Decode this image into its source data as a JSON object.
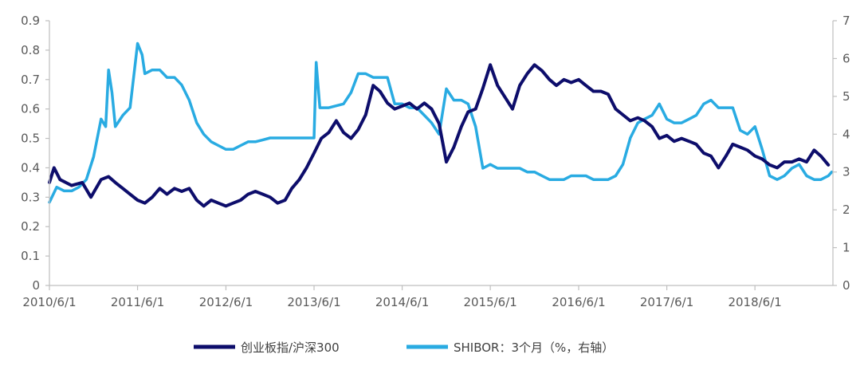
{
  "chart_data": {
    "type": "line",
    "x_ticks": [
      "2010/6/1",
      "2011/6/1",
      "2012/6/1",
      "2013/6/1",
      "2014/6/1",
      "2015/6/1",
      "2016/6/1",
      "2017/6/1",
      "2018/6/1"
    ],
    "y_left": {
      "min": 0,
      "max": 0.9,
      "step": 0.1,
      "ticks": [
        "0",
        "0.1",
        "0.2",
        "0.3",
        "0.4",
        "0.5",
        "0.6",
        "0.7",
        "0.8",
        "0.9"
      ]
    },
    "y_right": {
      "min": 0,
      "max": 7,
      "step": 1,
      "ticks": [
        "0",
        "1",
        "2",
        "3",
        "4",
        "5",
        "6",
        "7"
      ]
    },
    "grid": false,
    "legend_position": "bottom",
    "series": [
      {
        "name": "创业板指/沪深300",
        "axis": "left",
        "color": "#0d0d6b",
        "points": [
          [
            "2010/6/1",
            0.35
          ],
          [
            "2010/6/20",
            0.4
          ],
          [
            "2010/7/15",
            0.36
          ],
          [
            "2010/9/1",
            0.34
          ],
          [
            "2010/10/15",
            0.35
          ],
          [
            "2010/11/20",
            0.3
          ],
          [
            "2011/1/1",
            0.36
          ],
          [
            "2011/2/1",
            0.37
          ],
          [
            "2011/3/1",
            0.35
          ],
          [
            "2011/4/1",
            0.33
          ],
          [
            "2011/5/1",
            0.31
          ],
          [
            "2011/6/1",
            0.29
          ],
          [
            "2011/7/1",
            0.28
          ],
          [
            "2011/8/1",
            0.3
          ],
          [
            "2011/9/1",
            0.33
          ],
          [
            "2011/10/1",
            0.31
          ],
          [
            "2011/11/1",
            0.33
          ],
          [
            "2011/12/1",
            0.32
          ],
          [
            "2012/1/1",
            0.33
          ],
          [
            "2012/2/1",
            0.29
          ],
          [
            "2012/3/1",
            0.27
          ],
          [
            "2012/4/1",
            0.29
          ],
          [
            "2012/5/1",
            0.28
          ],
          [
            "2012/6/1",
            0.27
          ],
          [
            "2012/7/1",
            0.28
          ],
          [
            "2012/8/1",
            0.29
          ],
          [
            "2012/9/1",
            0.31
          ],
          [
            "2012/10/1",
            0.32
          ],
          [
            "2012/11/1",
            0.31
          ],
          [
            "2012/12/1",
            0.3
          ],
          [
            "2013/1/1",
            0.28
          ],
          [
            "2013/2/1",
            0.29
          ],
          [
            "2013/3/1",
            0.33
          ],
          [
            "2013/4/1",
            0.36
          ],
          [
            "2013/5/1",
            0.4
          ],
          [
            "2013/6/1",
            0.45
          ],
          [
            "2013/7/1",
            0.5
          ],
          [
            "2013/8/1",
            0.52
          ],
          [
            "2013/9/1",
            0.56
          ],
          [
            "2013/10/1",
            0.52
          ],
          [
            "2013/11/1",
            0.5
          ],
          [
            "2013/12/1",
            0.53
          ],
          [
            "2014/1/1",
            0.58
          ],
          [
            "2014/2/1",
            0.68
          ],
          [
            "2014/3/1",
            0.66
          ],
          [
            "2014/4/1",
            0.62
          ],
          [
            "2014/5/1",
            0.6
          ],
          [
            "2014/6/1",
            0.61
          ],
          [
            "2014/7/1",
            0.62
          ],
          [
            "2014/8/1",
            0.6
          ],
          [
            "2014/9/1",
            0.62
          ],
          [
            "2014/10/1",
            0.6
          ],
          [
            "2014/11/1",
            0.55
          ],
          [
            "2014/12/1",
            0.42
          ],
          [
            "2015/1/1",
            0.47
          ],
          [
            "2015/2/1",
            0.54
          ],
          [
            "2015/3/1",
            0.59
          ],
          [
            "2015/4/1",
            0.6
          ],
          [
            "2015/5/1",
            0.67
          ],
          [
            "2015/6/1",
            0.75
          ],
          [
            "2015/7/1",
            0.68
          ],
          [
            "2015/8/1",
            0.64
          ],
          [
            "2015/9/1",
            0.6
          ],
          [
            "2015/10/1",
            0.68
          ],
          [
            "2015/11/1",
            0.72
          ],
          [
            "2015/12/1",
            0.75
          ],
          [
            "2016/1/1",
            0.73
          ],
          [
            "2016/2/1",
            0.7
          ],
          [
            "2016/3/1",
            0.68
          ],
          [
            "2016/4/1",
            0.7
          ],
          [
            "2016/5/1",
            0.69
          ],
          [
            "2016/6/1",
            0.7
          ],
          [
            "2016/7/1",
            0.68
          ],
          [
            "2016/8/1",
            0.66
          ],
          [
            "2016/9/1",
            0.66
          ],
          [
            "2016/10/1",
            0.65
          ],
          [
            "2016/11/1",
            0.6
          ],
          [
            "2016/12/1",
            0.58
          ],
          [
            "2017/1/1",
            0.56
          ],
          [
            "2017/2/1",
            0.57
          ],
          [
            "2017/3/1",
            0.56
          ],
          [
            "2017/4/1",
            0.54
          ],
          [
            "2017/5/1",
            0.5
          ],
          [
            "2017/6/1",
            0.51
          ],
          [
            "2017/7/1",
            0.49
          ],
          [
            "2017/8/1",
            0.5
          ],
          [
            "2017/9/1",
            0.49
          ],
          [
            "2017/10/1",
            0.48
          ],
          [
            "2017/11/1",
            0.45
          ],
          [
            "2017/12/1",
            0.44
          ],
          [
            "2018/1/1",
            0.4
          ],
          [
            "2018/2/1",
            0.44
          ],
          [
            "2018/3/1",
            0.48
          ],
          [
            "2018/4/1",
            0.47
          ],
          [
            "2018/5/1",
            0.46
          ],
          [
            "2018/6/1",
            0.44
          ],
          [
            "2018/7/1",
            0.43
          ],
          [
            "2018/8/1",
            0.41
          ],
          [
            "2018/9/1",
            0.4
          ],
          [
            "2018/10/1",
            0.42
          ],
          [
            "2018/11/1",
            0.42
          ],
          [
            "2018/12/1",
            0.43
          ],
          [
            "2019/1/1",
            0.42
          ],
          [
            "2019/2/1",
            0.46
          ],
          [
            "2019/3/1",
            0.44
          ],
          [
            "2019/4/1",
            0.41
          ]
        ]
      },
      {
        "name": "SHIBOR：3个月（%，右轴）",
        "axis": "right",
        "color": "#29abe2",
        "points": [
          [
            "2010/6/1",
            2.2
          ],
          [
            "2010/7/1",
            2.6
          ],
          [
            "2010/8/1",
            2.5
          ],
          [
            "2010/9/1",
            2.5
          ],
          [
            "2010/10/1",
            2.6
          ],
          [
            "2010/11/1",
            2.8
          ],
          [
            "2010/12/1",
            3.4
          ],
          [
            "2011/1/1",
            4.4
          ],
          [
            "2011/1/20",
            4.2
          ],
          [
            "2011/2/1",
            5.7
          ],
          [
            "2011/2/15",
            5.1
          ],
          [
            "2011/3/1",
            4.2
          ],
          [
            "2011/4/1",
            4.5
          ],
          [
            "2011/5/1",
            4.7
          ],
          [
            "2011/6/1",
            6.4
          ],
          [
            "2011/6/20",
            6.1
          ],
          [
            "2011/7/1",
            5.6
          ],
          [
            "2011/8/1",
            5.7
          ],
          [
            "2011/9/1",
            5.7
          ],
          [
            "2011/10/1",
            5.5
          ],
          [
            "2011/11/1",
            5.5
          ],
          [
            "2011/12/1",
            5.3
          ],
          [
            "2012/1/1",
            4.9
          ],
          [
            "2012/2/1",
            4.3
          ],
          [
            "2012/3/1",
            4.0
          ],
          [
            "2012/4/1",
            3.8
          ],
          [
            "2012/5/1",
            3.7
          ],
          [
            "2012/6/1",
            3.6
          ],
          [
            "2012/7/1",
            3.6
          ],
          [
            "2012/8/1",
            3.7
          ],
          [
            "2012/9/1",
            3.8
          ],
          [
            "2012/10/1",
            3.8
          ],
          [
            "2012/11/1",
            3.85
          ],
          [
            "2012/12/1",
            3.9
          ],
          [
            "2013/1/1",
            3.9
          ],
          [
            "2013/5/1",
            3.9
          ],
          [
            "2013/6/1",
            3.9
          ],
          [
            "2013/6/10",
            5.9
          ],
          [
            "2013/6/25",
            4.7
          ],
          [
            "2013/8/1",
            4.7
          ],
          [
            "2013/10/1",
            4.8
          ],
          [
            "2013/11/1",
            5.1
          ],
          [
            "2013/12/1",
            5.6
          ],
          [
            "2014/1/1",
            5.6
          ],
          [
            "2014/2/1",
            5.5
          ],
          [
            "2014/3/1",
            5.5
          ],
          [
            "2014/4/1",
            5.5
          ],
          [
            "2014/5/1",
            4.8
          ],
          [
            "2014/6/1",
            4.8
          ],
          [
            "2014/7/1",
            4.7
          ],
          [
            "2014/8/1",
            4.7
          ],
          [
            "2014/9/1",
            4.5
          ],
          [
            "2014/10/1",
            4.3
          ],
          [
            "2014/11/1",
            4.0
          ],
          [
            "2014/12/1",
            5.2
          ],
          [
            "2015/1/1",
            4.9
          ],
          [
            "2015/2/1",
            4.9
          ],
          [
            "2015/3/1",
            4.8
          ],
          [
            "2015/4/1",
            4.2
          ],
          [
            "2015/5/1",
            3.1
          ],
          [
            "2015/6/1",
            3.2
          ],
          [
            "2015/7/1",
            3.1
          ],
          [
            "2015/8/1",
            3.1
          ],
          [
            "2015/9/1",
            3.1
          ],
          [
            "2015/10/1",
            3.1
          ],
          [
            "2015/11/1",
            3.0
          ],
          [
            "2015/12/1",
            3.0
          ],
          [
            "2016/1/1",
            2.9
          ],
          [
            "2016/2/1",
            2.8
          ],
          [
            "2016/3/1",
            2.8
          ],
          [
            "2016/4/1",
            2.8
          ],
          [
            "2016/5/1",
            2.9
          ],
          [
            "2016/6/1",
            2.9
          ],
          [
            "2016/7/1",
            2.9
          ],
          [
            "2016/8/1",
            2.8
          ],
          [
            "2016/9/1",
            2.8
          ],
          [
            "2016/10/1",
            2.8
          ],
          [
            "2016/11/1",
            2.9
          ],
          [
            "2016/12/1",
            3.2
          ],
          [
            "2017/1/1",
            3.9
          ],
          [
            "2017/2/1",
            4.3
          ],
          [
            "2017/3/1",
            4.4
          ],
          [
            "2017/4/1",
            4.5
          ],
          [
            "2017/5/1",
            4.8
          ],
          [
            "2017/6/1",
            4.4
          ],
          [
            "2017/7/1",
            4.3
          ],
          [
            "2017/8/1",
            4.3
          ],
          [
            "2017/9/1",
            4.4
          ],
          [
            "2017/10/1",
            4.5
          ],
          [
            "2017/11/1",
            4.8
          ],
          [
            "2017/12/1",
            4.9
          ],
          [
            "2018/1/1",
            4.7
          ],
          [
            "2018/2/1",
            4.7
          ],
          [
            "2018/3/1",
            4.7
          ],
          [
            "2018/4/1",
            4.1
          ],
          [
            "2018/5/1",
            4.0
          ],
          [
            "2018/6/1",
            4.2
          ],
          [
            "2018/7/1",
            3.6
          ],
          [
            "2018/8/1",
            2.9
          ],
          [
            "2018/9/1",
            2.8
          ],
          [
            "2018/10/1",
            2.9
          ],
          [
            "2018/11/1",
            3.1
          ],
          [
            "2018/12/1",
            3.2
          ],
          [
            "2019/1/1",
            2.9
          ],
          [
            "2019/2/1",
            2.8
          ],
          [
            "2019/3/1",
            2.8
          ],
          [
            "2019/4/1",
            2.9
          ],
          [
            "2019/4/15",
            3.0
          ]
        ]
      }
    ]
  }
}
